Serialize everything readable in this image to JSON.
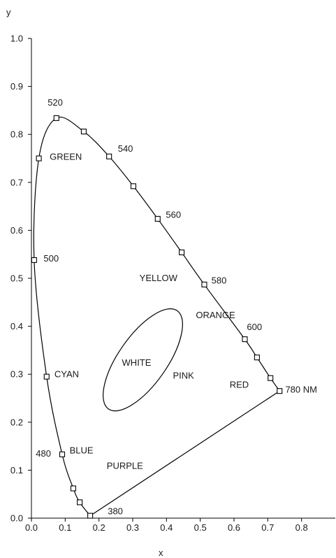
{
  "chart_data": {
    "type": "scatter",
    "xlabel": "x",
    "ylabel": "y",
    "xlim": [
      0.0,
      0.9
    ],
    "ylim": [
      0.0,
      1.0
    ],
    "x_ticks": [
      0.0,
      0.1,
      0.2,
      0.3,
      0.4,
      0.5,
      0.6,
      0.7,
      0.8
    ],
    "x_tick_labels": [
      "0.0",
      "0.1",
      "0.2",
      "0.3",
      "0.4",
      "0.5",
      "0.6",
      "0.7",
      "0.8"
    ],
    "y_ticks": [
      0.0,
      0.1,
      0.2,
      0.3,
      0.4,
      0.5,
      0.6,
      0.7,
      0.8,
      0.9,
      1.0
    ],
    "y_tick_labels": [
      "0.0",
      "0.1",
      "0.2",
      "0.3",
      "0.4",
      "0.5",
      "0.6",
      "0.7",
      "0.8",
      "0.9",
      "1.0"
    ],
    "grid": false,
    "line_color": "#000000",
    "spectral_locus": [
      [
        0.174,
        0.005
      ],
      [
        0.143,
        0.033
      ],
      [
        0.124,
        0.062
      ],
      [
        0.091,
        0.133
      ],
      [
        0.045,
        0.295
      ],
      [
        0.008,
        0.538
      ],
      [
        0.022,
        0.75
      ],
      [
        0.074,
        0.834
      ],
      [
        0.155,
        0.806
      ],
      [
        0.23,
        0.754
      ],
      [
        0.302,
        0.692
      ],
      [
        0.374,
        0.624
      ],
      [
        0.445,
        0.554
      ],
      [
        0.512,
        0.487
      ],
      [
        0.632,
        0.373
      ],
      [
        0.668,
        0.335
      ],
      [
        0.708,
        0.292
      ],
      [
        0.735,
        0.265
      ]
    ],
    "markers": [
      [
        0.174,
        0.005
      ],
      [
        0.143,
        0.033
      ],
      [
        0.124,
        0.062
      ],
      [
        0.091,
        0.133
      ],
      [
        0.045,
        0.295
      ],
      [
        0.008,
        0.538
      ],
      [
        0.022,
        0.75
      ],
      [
        0.074,
        0.834
      ],
      [
        0.155,
        0.806
      ],
      [
        0.23,
        0.754
      ],
      [
        0.302,
        0.692
      ],
      [
        0.374,
        0.624
      ],
      [
        0.445,
        0.554
      ],
      [
        0.512,
        0.487
      ],
      [
        0.632,
        0.373
      ],
      [
        0.668,
        0.335
      ],
      [
        0.708,
        0.292
      ],
      [
        0.735,
        0.265
      ]
    ],
    "purple_line": [
      [
        0.174,
        0.005
      ],
      [
        0.735,
        0.265
      ]
    ],
    "white_ellipse": {
      "center": [
        0.33,
        0.33
      ],
      "rx": 0.072,
      "ry": 0.125,
      "rotation_deg": 35
    },
    "annotations": [
      {
        "text": "520",
        "x": 0.048,
        "y": 0.86
      },
      {
        "text": "540",
        "x": 0.256,
        "y": 0.764
      },
      {
        "text": "560",
        "x": 0.398,
        "y": 0.626
      },
      {
        "text": "580",
        "x": 0.533,
        "y": 0.489
      },
      {
        "text": "600",
        "x": 0.638,
        "y": 0.392
      },
      {
        "text": "780 NM",
        "x": 0.752,
        "y": 0.262
      },
      {
        "text": "500",
        "x": 0.036,
        "y": 0.535
      },
      {
        "text": "480",
        "x": 0.013,
        "y": 0.128
      },
      {
        "text": "380",
        "x": 0.226,
        "y": 0.008
      },
      {
        "text": "GREEN",
        "x": 0.054,
        "y": 0.747
      },
      {
        "text": "YELLOW",
        "x": 0.32,
        "y": 0.494
      },
      {
        "text": "ORANGE",
        "x": 0.487,
        "y": 0.417
      },
      {
        "text": "WHITE",
        "x": 0.268,
        "y": 0.318
      },
      {
        "text": "PINK",
        "x": 0.419,
        "y": 0.291
      },
      {
        "text": "RED",
        "x": 0.587,
        "y": 0.272
      },
      {
        "text": "CYAN",
        "x": 0.068,
        "y": 0.294
      },
      {
        "text": "BLUE",
        "x": 0.113,
        "y": 0.135
      },
      {
        "text": "PURPLE",
        "x": 0.223,
        "y": 0.103
      }
    ]
  }
}
